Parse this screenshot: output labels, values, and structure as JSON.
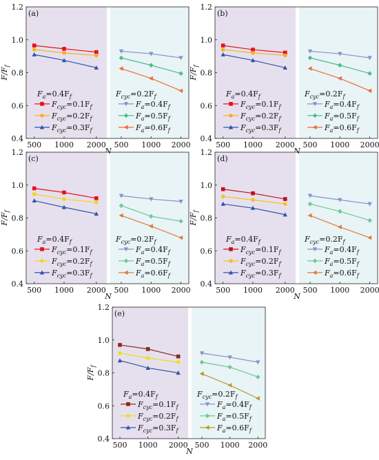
{
  "chart_data": [
    {
      "type": "line",
      "panel_label": "(a)",
      "x": [
        500,
        1000,
        2000
      ],
      "xlabel": "N",
      "ylabel": "F/F_f",
      "ylim": [
        0.4,
        1.2
      ],
      "yticks": [
        0.4,
        0.6,
        0.8,
        1.0,
        1.2
      ],
      "ytick_labels": [
        "0.4",
        "0.6",
        "0.8",
        "1.0",
        "1.2"
      ],
      "groups": [
        {
          "title": {
            "base": "F",
            "sub": "a",
            "rest": "=0.4F",
            "sub2": "f"
          },
          "series": [
            {
              "name": "Fcyc=0.1Ff",
              "label": {
                "sub": "cyc",
                "val": "=0.1F"
              },
              "color": "#e8101a",
              "marker": "square",
              "values": [
                0.965,
                0.945,
                0.925
              ]
            },
            {
              "name": "Fcyc=0.2Ff",
              "label": {
                "sub": "cyc",
                "val": "=0.2F"
              },
              "color": "#f5b21b",
              "marker": "circle",
              "values": [
                0.94,
                0.92,
                0.905
              ]
            },
            {
              "name": "Fcyc=0.3Ff",
              "label": {
                "sub": "cyc",
                "val": "=0.3F"
              },
              "color": "#2e54a8",
              "marker": "triangle-up",
              "values": [
                0.91,
                0.875,
                0.83
              ]
            }
          ]
        },
        {
          "title": {
            "base": "F",
            "sub": "cyc",
            "rest": "=0.2F",
            "sub2": "f"
          },
          "series": [
            {
              "name": "Fa=0.4Ff",
              "label": {
                "sub": "a",
                "val": "=0.4F"
              },
              "color": "#8890cc",
              "marker": "triangle-down",
              "values": [
                0.93,
                0.915,
                0.89
              ]
            },
            {
              "name": "Fa=0.5Ff",
              "label": {
                "sub": "a",
                "val": "=0.5F"
              },
              "color": "#4fba8c",
              "marker": "diamond",
              "values": [
                0.89,
                0.845,
                0.795
              ]
            },
            {
              "name": "Fa=0.6Ff",
              "label": {
                "sub": "a",
                "val": "=0.6F"
              },
              "color": "#ee6a3c",
              "marker": "left",
              "values": [
                0.825,
                0.765,
                0.69
              ]
            }
          ]
        }
      ]
    },
    {
      "type": "line",
      "panel_label": "(b)",
      "x": [
        500,
        1000,
        2000
      ],
      "xlabel": "N",
      "ylabel": "F/F_f",
      "ylim": [
        0.4,
        1.2
      ],
      "yticks": [
        0.4,
        0.6,
        0.8,
        1.0,
        1.2
      ],
      "ytick_labels": [
        "0.4",
        "0.6",
        "0.8",
        "1.0",
        "1.2"
      ],
      "groups": [
        {
          "title": {
            "base": "F",
            "sub": "a",
            "rest": "=0.4F",
            "sub2": "f"
          },
          "series": [
            {
              "name": "Fcyc=0.1Ff",
              "label": {
                "sub": "cyc",
                "val": "=0.1F"
              },
              "color": "#e8101a",
              "marker": "square",
              "values": [
                0.965,
                0.94,
                0.922
              ]
            },
            {
              "name": "Fcyc=0.2Ff",
              "label": {
                "sub": "cyc",
                "val": "=0.2F"
              },
              "color": "#f5b21b",
              "marker": "circle",
              "values": [
                0.94,
                0.92,
                0.905
              ]
            },
            {
              "name": "Fcyc=0.3Ff",
              "label": {
                "sub": "cyc",
                "val": "=0.3F"
              },
              "color": "#2e54a8",
              "marker": "triangle-up",
              "values": [
                0.91,
                0.875,
                0.83
              ]
            }
          ]
        },
        {
          "title": {
            "base": "F",
            "sub": "cyc",
            "rest": "=0.2F",
            "sub2": "f"
          },
          "series": [
            {
              "name": "Fa=0.4Ff",
              "label": {
                "sub": "a",
                "val": "=0.4F"
              },
              "color": "#8890cc",
              "marker": "triangle-down",
              "values": [
                0.93,
                0.915,
                0.89
              ]
            },
            {
              "name": "Fa=0.5Ff",
              "label": {
                "sub": "a",
                "val": "=0.5F"
              },
              "color": "#4fba8c",
              "marker": "diamond",
              "values": [
                0.89,
                0.845,
                0.795
              ]
            },
            {
              "name": "Fa=0.6Ff",
              "label": {
                "sub": "a",
                "val": "=0.6F"
              },
              "color": "#ee6a3c",
              "marker": "left",
              "values": [
                0.825,
                0.765,
                0.69
              ]
            }
          ]
        }
      ]
    },
    {
      "type": "line",
      "panel_label": "(c)",
      "x": [
        500,
        1000,
        2000
      ],
      "xlabel": "N",
      "ylabel": "F/F_f",
      "ylim": [
        0.4,
        1.2
      ],
      "yticks": [
        0.4,
        0.6,
        0.8,
        1.0,
        1.2
      ],
      "ytick_labels": [
        "0.4",
        "0.6",
        "0.8",
        "1.0",
        "1.2"
      ],
      "groups": [
        {
          "title": {
            "base": "F",
            "sub": "a",
            "rest": "=0.4F",
            "sub2": "f"
          },
          "series": [
            {
              "name": "Fcyc=0.1Ff",
              "label": {
                "sub": "cyc",
                "val": "=0.1F"
              },
              "color": "#e8101a",
              "marker": "square",
              "values": [
                0.98,
                0.955,
                0.92
              ]
            },
            {
              "name": "Fcyc=0.2Ff",
              "label": {
                "sub": "cyc",
                "val": "=0.2F"
              },
              "color": "#f5d61b",
              "marker": "circle",
              "values": [
                0.945,
                0.915,
                0.895
              ]
            },
            {
              "name": "Fcyc=0.3Ff",
              "label": {
                "sub": "cyc",
                "val": "=0.3F"
              },
              "color": "#2e54a8",
              "marker": "triangle-up",
              "values": [
                0.905,
                0.865,
                0.825
              ]
            }
          ]
        },
        {
          "title": {
            "base": "F",
            "sub": "cyc",
            "rest": "=0.2F",
            "sub2": "f"
          },
          "series": [
            {
              "name": "Fa=0.4Ff",
              "label": {
                "sub": "a",
                "val": "=0.4F"
              },
              "color": "#8890cc",
              "marker": "triangle-down",
              "values": [
                0.935,
                0.915,
                0.9
              ]
            },
            {
              "name": "Fa=0.5Ff",
              "label": {
                "sub": "a",
                "val": "=0.5F"
              },
              "color": "#6ec89a",
              "marker": "diamond",
              "values": [
                0.875,
                0.81,
                0.78
              ]
            },
            {
              "name": "Fa=0.6Ff",
              "label": {
                "sub": "a",
                "val": "=0.6F"
              },
              "color": "#e07a3a",
              "marker": "left",
              "values": [
                0.815,
                0.75,
                0.68
              ]
            }
          ]
        }
      ]
    },
    {
      "type": "line",
      "panel_label": "(d)",
      "x": [
        500,
        1000,
        2000
      ],
      "xlabel": "N",
      "ylabel": "F/F_f",
      "ylim": [
        0.4,
        1.2
      ],
      "yticks": [
        0.4,
        0.6,
        0.8,
        1.0,
        1.2
      ],
      "ytick_labels": [
        "0.4",
        "0.6",
        "0.8",
        "1.0",
        "1.2"
      ],
      "groups": [
        {
          "title": {
            "base": "F",
            "sub": "a",
            "rest": "=0.4F",
            "sub2": "f"
          },
          "series": [
            {
              "name": "Fcyc=0.1Ff",
              "label": {
                "sub": "cyc",
                "val": "=0.1F"
              },
              "color": "#c0101a",
              "marker": "square",
              "values": [
                0.975,
                0.95,
                0.915
              ]
            },
            {
              "name": "Fcyc=0.2Ff",
              "label": {
                "sub": "cyc",
                "val": "=0.2F"
              },
              "color": "#f5c21b",
              "marker": "circle",
              "values": [
                0.93,
                0.91,
                0.885
              ]
            },
            {
              "name": "Fcyc=0.3Ff",
              "label": {
                "sub": "cyc",
                "val": "=0.3F"
              },
              "color": "#2e54a8",
              "marker": "triangle-up",
              "values": [
                0.885,
                0.86,
                0.82
              ]
            }
          ]
        },
        {
          "title": {
            "base": "F",
            "sub": "cyc",
            "rest": "=0.2F",
            "sub2": "f"
          },
          "series": [
            {
              "name": "Fa=0.4Ff",
              "label": {
                "sub": "a",
                "val": "=0.4F"
              },
              "color": "#8890cc",
              "marker": "triangle-down",
              "values": [
                0.935,
                0.91,
                0.885
              ]
            },
            {
              "name": "Fa=0.5Ff",
              "label": {
                "sub": "a",
                "val": "=0.5F"
              },
              "color": "#6ec89a",
              "marker": "diamond",
              "values": [
                0.885,
                0.84,
                0.785
              ]
            },
            {
              "name": "Fa=0.6Ff",
              "label": {
                "sub": "a",
                "val": "=0.6F"
              },
              "color": "#e07a3a",
              "marker": "left",
              "values": [
                0.815,
                0.745,
                0.68
              ]
            }
          ]
        }
      ]
    },
    {
      "type": "line",
      "panel_label": "(e)",
      "x": [
        500,
        1000,
        2000
      ],
      "xlabel": "N",
      "ylabel": "F/F_f",
      "ylim": [
        0.4,
        1.2
      ],
      "yticks": [
        0.4,
        0.6,
        0.8,
        1.0,
        1.2
      ],
      "ytick_labels": [
        "0.4",
        "0.6",
        "0.8",
        "1.0",
        "1.2"
      ],
      "groups": [
        {
          "title": {
            "base": "F",
            "sub": "a",
            "rest": "=0.4F",
            "sub2": "f"
          },
          "series": [
            {
              "name": "Fcyc=0.1Ff",
              "label": {
                "sub": "cyc",
                "val": "=0.1F"
              },
              "color": "#8b2a1a",
              "marker": "square",
              "values": [
                0.97,
                0.945,
                0.9
              ]
            },
            {
              "name": "Fcyc=0.2Ff",
              "label": {
                "sub": "cyc",
                "val": "=0.2F"
              },
              "color": "#e8e21b",
              "marker": "circle",
              "values": [
                0.92,
                0.89,
                0.865
              ]
            },
            {
              "name": "Fcyc=0.3Ff",
              "label": {
                "sub": "cyc",
                "val": "=0.3F"
              },
              "color": "#2e54a8",
              "marker": "triangle-up",
              "values": [
                0.875,
                0.83,
                0.8
              ]
            }
          ]
        },
        {
          "title": {
            "base": "F",
            "sub": "cyc",
            "rest": "=0.2F",
            "sub2": "f"
          },
          "series": [
            {
              "name": "Fa=0.4Ff",
              "label": {
                "sub": "a",
                "val": "=0.4F"
              },
              "color": "#8890cc",
              "marker": "triangle-down",
              "values": [
                0.92,
                0.895,
                0.865
              ]
            },
            {
              "name": "Fa=0.5Ff",
              "label": {
                "sub": "a",
                "val": "=0.5F"
              },
              "color": "#6ec89a",
              "marker": "diamond",
              "values": [
                0.865,
                0.835,
                0.775
              ]
            },
            {
              "name": "Fa=0.6Ff",
              "label": {
                "sub": "a",
                "val": "=0.6F"
              },
              "color": "#b89a2a",
              "marker": "left",
              "values": [
                0.795,
                0.725,
                0.645
              ]
            }
          ]
        }
      ]
    }
  ],
  "colors": {
    "left_region_bg": "#e6e0ee",
    "right_region_bg": "#e8f4f6",
    "divider": "#ffffff"
  }
}
